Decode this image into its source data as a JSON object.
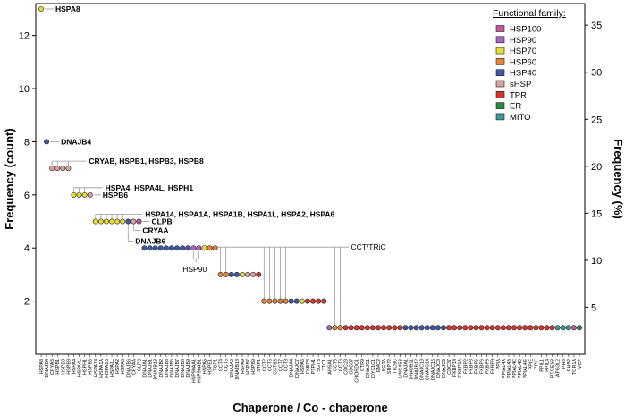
{
  "chart_data": {
    "type": "scatter",
    "xlabel": "Chaperone / Co - chaperone",
    "ylabel": "Frequency (count)",
    "ylabel_right": "Frequency (%)",
    "ylim": [
      0,
      13.2
    ],
    "yticks": [
      2,
      4,
      6,
      8,
      10,
      12
    ],
    "right_ylim": [
      0,
      37.3
    ],
    "right_yticks": [
      5,
      10,
      15,
      20,
      25,
      30,
      35
    ],
    "legend": {
      "title": "Functional family:",
      "position": "top-right",
      "items": [
        {
          "name": "HSP100",
          "color": "#c2569a"
        },
        {
          "name": "HSP90",
          "color": "#a866c1"
        },
        {
          "name": "HSP70",
          "color": "#e6dc38"
        },
        {
          "name": "HSP60",
          "color": "#e8823a"
        },
        {
          "name": "HSP40",
          "color": "#3d58a6"
        },
        {
          "name": "sHSP",
          "color": "#d9a2a0"
        },
        {
          "name": "TPR",
          "color": "#d8342c"
        },
        {
          "name": "ER",
          "color": "#2a8b3c"
        },
        {
          "name": "MITO",
          "color": "#3a9a9a"
        }
      ]
    },
    "points": [
      {
        "x": "HSPA8",
        "y": 13,
        "family": "HSP70"
      },
      {
        "x": "DNAJB4",
        "y": 8,
        "family": "HSP40"
      },
      {
        "x": "CRYAB",
        "y": 7,
        "family": "sHSP"
      },
      {
        "x": "HSPB1",
        "y": 7,
        "family": "sHSP"
      },
      {
        "x": "HSPB3",
        "y": 7,
        "family": "sHSP"
      },
      {
        "x": "HSPB8",
        "y": 7,
        "family": "sHSP"
      },
      {
        "x": "HSPA4",
        "y": 6,
        "family": "HSP70"
      },
      {
        "x": "HSPA4L",
        "y": 6,
        "family": "HSP70"
      },
      {
        "x": "HSPH1",
        "y": 6,
        "family": "HSP70"
      },
      {
        "x": "HSPB6",
        "y": 6,
        "family": "sHSP"
      },
      {
        "x": "HSPA14",
        "y": 5,
        "family": "HSP70"
      },
      {
        "x": "HSPA1A",
        "y": 5,
        "family": "HSP70"
      },
      {
        "x": "HSPA1B",
        "y": 5,
        "family": "HSP70"
      },
      {
        "x": "HSPA1L",
        "y": 5,
        "family": "HSP70"
      },
      {
        "x": "HSPA2",
        "y": 5,
        "family": "HSP70"
      },
      {
        "x": "HSPA6",
        "y": 5,
        "family": "HSP70"
      },
      {
        "x": "DNAJB6",
        "y": 5,
        "family": "HSP40"
      },
      {
        "x": "CRYAA",
        "y": 5,
        "family": "sHSP"
      },
      {
        "x": "CLPB",
        "y": 5,
        "family": "HSP100"
      },
      {
        "x": "DNAJA1",
        "y": 4,
        "family": "HSP40"
      },
      {
        "x": "DNAJB1",
        "y": 4,
        "family": "HSP40"
      },
      {
        "x": "DNAJB13",
        "y": 4,
        "family": "HSP40"
      },
      {
        "x": "DNAJB2",
        "y": 4,
        "family": "HSP40"
      },
      {
        "x": "DNAJB3",
        "y": 4,
        "family": "HSP40"
      },
      {
        "x": "DNAJB5",
        "y": 4,
        "family": "HSP40"
      },
      {
        "x": "DNAJB7",
        "y": 4,
        "family": "HSP40"
      },
      {
        "x": "DNAJB8",
        "y": 4,
        "family": "HSP40"
      },
      {
        "x": "DNAJB9",
        "y": 4,
        "family": "HSP40"
      },
      {
        "x": "HSP90AA1",
        "y": 4,
        "family": "HSP90"
      },
      {
        "x": "HSP90AB1",
        "y": 4,
        "family": "HSP90"
      },
      {
        "x": "HSPA5",
        "y": 4,
        "family": "HSP70"
      },
      {
        "x": "HSPE1",
        "y": 4,
        "family": "HSP60"
      },
      {
        "x": "TCP1",
        "y": 4,
        "family": "HSP60"
      },
      {
        "x": "CCT4",
        "y": 3,
        "family": "HSP60"
      },
      {
        "x": "CCT5",
        "y": 3,
        "family": "HSP60"
      },
      {
        "x": "DNAJA2",
        "y": 3,
        "family": "HSP40"
      },
      {
        "x": "DNAJB13",
        "y": 3,
        "family": "HSP40"
      },
      {
        "x": "HSPA9",
        "y": 3,
        "family": "HSP70"
      },
      {
        "x": "HSPB7",
        "y": 3,
        "family": "sHSP"
      },
      {
        "x": "HSPB9",
        "y": 3,
        "family": "sHSP"
      },
      {
        "x": "STIP1",
        "y": 3,
        "family": "TPR"
      },
      {
        "x": "CCT2",
        "y": 2,
        "family": "HSP60"
      },
      {
        "x": "CCT6",
        "y": 2,
        "family": "HSP60"
      },
      {
        "x": "CCT6B",
        "y": 2,
        "family": "HSP60"
      },
      {
        "x": "CCT7",
        "y": 2,
        "family": "HSP60"
      },
      {
        "x": "CCT8",
        "y": 2,
        "family": "HSP60"
      },
      {
        "x": "DNAJA4",
        "y": 2,
        "family": "HSP40"
      },
      {
        "x": "DNAJC7",
        "y": 2,
        "family": "HSP40"
      },
      {
        "x": "HSPA6",
        "y": 2,
        "family": "HSP70"
      },
      {
        "x": "FKBP4",
        "y": 2,
        "family": "TPR"
      },
      {
        "x": "PTPH1",
        "y": 2,
        "family": "TPR"
      },
      {
        "x": "SGTB",
        "y": 2,
        "family": "TPR"
      },
      {
        "x": "TTC1",
        "y": 2,
        "family": "TPR"
      },
      {
        "x": "AHSA1",
        "y": 1,
        "family": "HSP90"
      },
      {
        "x": "CCT3",
        "y": 1,
        "family": "HSP60"
      },
      {
        "x": "CCT6",
        "y": 1,
        "family": "HSP60"
      },
      {
        "x": "CDC23",
        "y": 1,
        "family": "TPR"
      },
      {
        "x": "CDC37",
        "y": 1,
        "family": "TPR"
      },
      {
        "x": "CHORDC1",
        "y": 1,
        "family": "TPR"
      },
      {
        "x": "CTR9",
        "y": 1,
        "family": "TPR"
      },
      {
        "x": "DNAJC1",
        "y": 1,
        "family": "TPR"
      },
      {
        "x": "DYX1C1",
        "y": 1,
        "family": "TPR"
      },
      {
        "x": "EMC2",
        "y": 1,
        "family": "TPR"
      },
      {
        "x": "SGTA",
        "y": 1,
        "family": "TPR"
      },
      {
        "x": "SRP72",
        "y": 1,
        "family": "TPR"
      },
      {
        "x": "TTC9C",
        "y": 1,
        "family": "TPR"
      },
      {
        "x": "UNC45B",
        "y": 1,
        "family": "TPR"
      },
      {
        "x": "DNAJA1",
        "y": 1,
        "family": "HSP40"
      },
      {
        "x": "DNAJB11",
        "y": 1,
        "family": "HSP40"
      },
      {
        "x": "DNAJB12",
        "y": 1,
        "family": "HSP40"
      },
      {
        "x": "DNAJC13",
        "y": 1,
        "family": "HSP40"
      },
      {
        "x": "DNAJC14",
        "y": 1,
        "family": "HSP40"
      },
      {
        "x": "DNAJC16",
        "y": 1,
        "family": "HSP40"
      },
      {
        "x": "DNAJC3",
        "y": 1,
        "family": "HSP40"
      },
      {
        "x": "DNAJC9",
        "y": 1,
        "family": "HSP40"
      },
      {
        "x": "CDC37",
        "y": 1,
        "family": "TPR"
      },
      {
        "x": "FKBP14",
        "y": 1,
        "family": "TPR"
      },
      {
        "x": "FKBP1A",
        "y": 1,
        "family": "TPR"
      },
      {
        "x": "FKBP2",
        "y": 1,
        "family": "TPR"
      },
      {
        "x": "FKBP3",
        "y": 1,
        "family": "TPR"
      },
      {
        "x": "FKBP5",
        "y": 1,
        "family": "TPR"
      },
      {
        "x": "FKBP6",
        "y": 1,
        "family": "TPR"
      },
      {
        "x": "FKBP8",
        "y": 1,
        "family": "TPR"
      },
      {
        "x": "FKBP9",
        "y": 1,
        "family": "TPR"
      },
      {
        "x": "PPIA",
        "y": 1,
        "family": "TPR"
      },
      {
        "x": "PPIAL4A",
        "y": 1,
        "family": "TPR"
      },
      {
        "x": "PPIAL4B",
        "y": 1,
        "family": "TPR"
      },
      {
        "x": "PPIAL4C",
        "y": 1,
        "family": "TPR"
      },
      {
        "x": "PPIAL4D",
        "y": 1,
        "family": "TPR"
      },
      {
        "x": "PPIAL4G",
        "y": 1,
        "family": "TPR"
      },
      {
        "x": "PPIE",
        "y": 1,
        "family": "TPR"
      },
      {
        "x": "PPIF",
        "y": 1,
        "family": "TPR"
      },
      {
        "x": "PPIL1",
        "y": 1,
        "family": "TPR"
      },
      {
        "x": "PPIL4",
        "y": 1,
        "family": "TPR"
      },
      {
        "x": "PTGES3",
        "y": 1,
        "family": "TPR"
      },
      {
        "x": "AFG3L2",
        "y": 1,
        "family": "MITO"
      },
      {
        "x": "PHB",
        "y": 1,
        "family": "MITO"
      },
      {
        "x": "PHB2",
        "y": 1,
        "family": "MITO"
      },
      {
        "x": "TOR1A",
        "y": 1,
        "family": "HSP100"
      },
      {
        "x": "VCP",
        "y": 1,
        "family": "ER"
      }
    ],
    "annotations": [
      {
        "text": "HSPA8",
        "bold": true
      },
      {
        "text": "DNAJB4",
        "bold": true
      },
      {
        "text": "CRYAB, HSPB1, HSPB3, HSPB8",
        "bold": true
      },
      {
        "text": "HSPA4, HSPA4L, HSPH1",
        "bold": true
      },
      {
        "text": "HSPB6",
        "bold": true
      },
      {
        "text": "HSPA14, HSPA1A, HSPA1B, HSPA1L, HSPA2, HSPA6",
        "bold": true
      },
      {
        "text": "CLPB",
        "bold": true
      },
      {
        "text": "CRYAA",
        "bold": true
      },
      {
        "text": "DNAJB6",
        "bold": true
      },
      {
        "text": "HSP90",
        "bold": false
      },
      {
        "text": "CCT/TRiC",
        "bold": false
      }
    ]
  }
}
